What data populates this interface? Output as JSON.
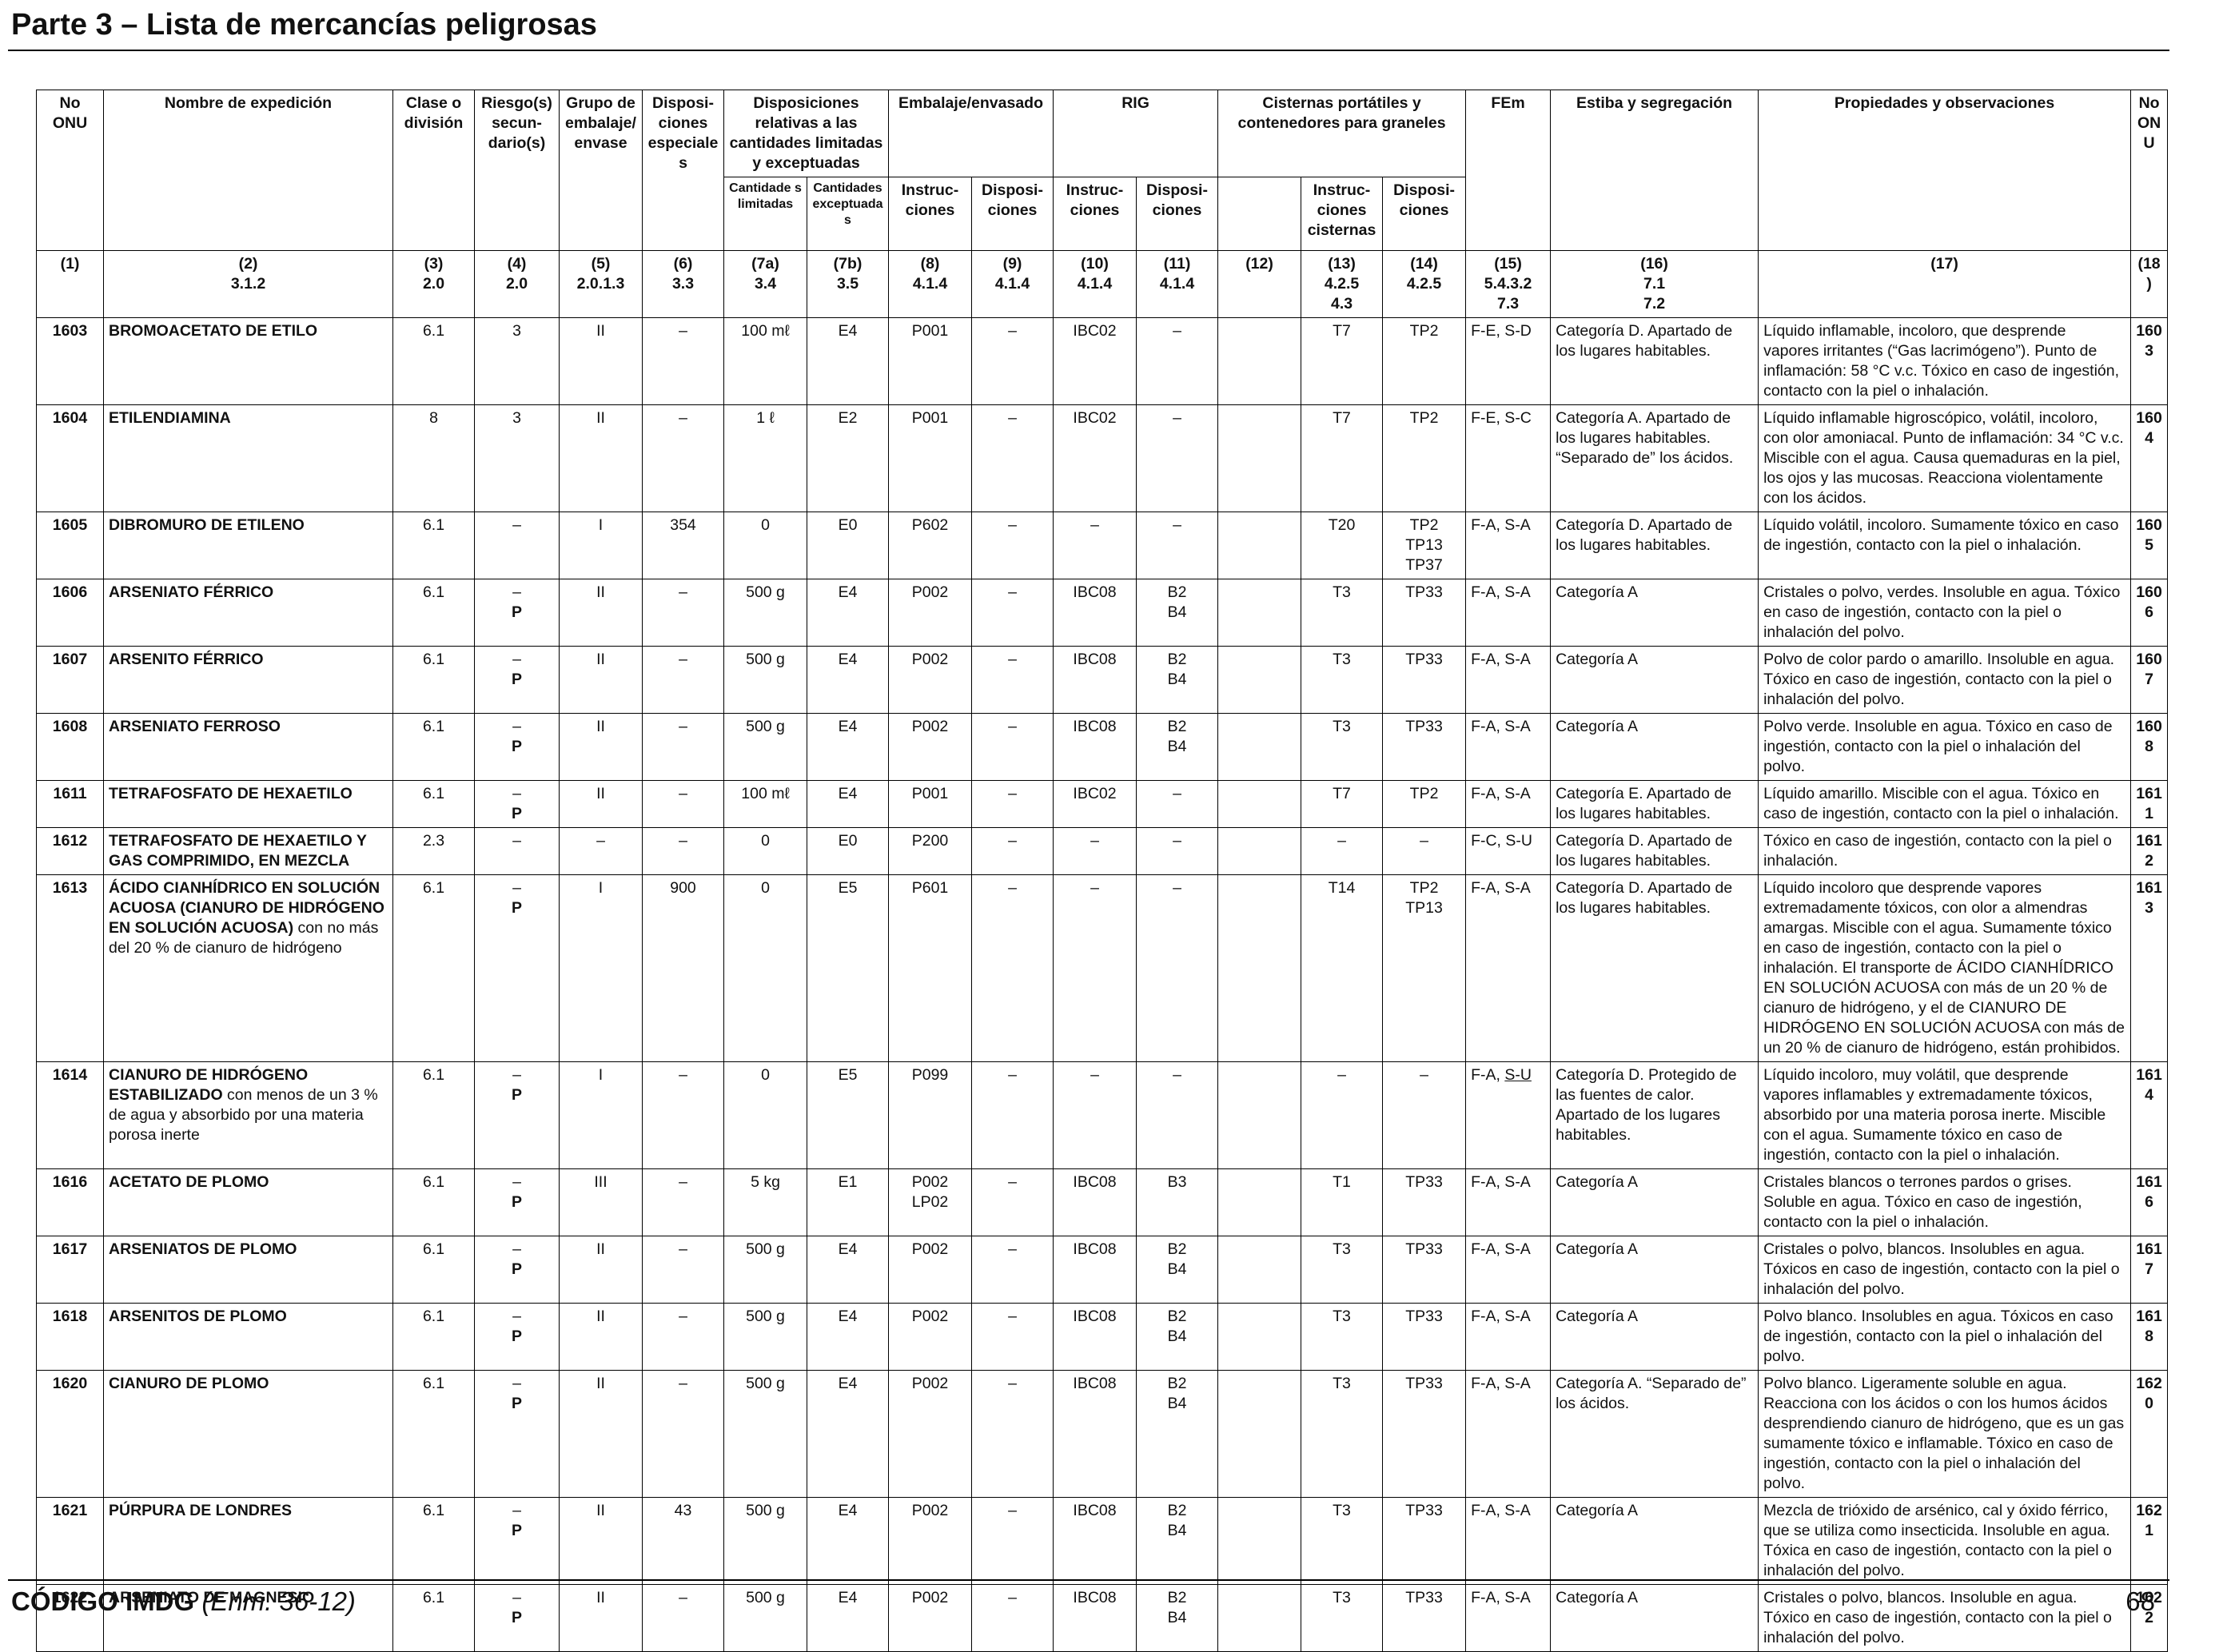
{
  "page": {
    "title": "Parte 3 – Lista de mercancías peligrosas",
    "footer_code": "CÓDIGO IMDG",
    "footer_amendment": "(Enm. 36-12)",
    "page_number": "68"
  },
  "headers": {
    "h1": "No ONU",
    "h2": "Nombre de expedición",
    "h3": "Clase o división",
    "h4": "Riesgo(s) secun- dario(s)",
    "h5": "Grupo de embalaje/ envase",
    "h6": "Disposi- ciones especiales",
    "h7": "Disposiciones relativas a las cantidades limitadas y exceptuadas",
    "h7a": "Cantidade s limitadas",
    "h7b": "Cantidades exceptuadas",
    "h8_9": "Embalaje/envasado",
    "h8": "Instruc- ciones",
    "h9": "Disposi- ciones",
    "h10_11": "RIG",
    "h10": "Instruc- ciones",
    "h11": "Disposi- ciones",
    "h12_14": "Cisternas portátiles y contenedores para graneles",
    "h13": "Instruc- ciones cisternas",
    "h14": "Disposi- ciones",
    "h15": "FEm",
    "h16": "Estiba y segregación",
    "h17": "Propiedades y observaciones",
    "h18": "No ONU"
  },
  "colnums": {
    "n1": "(1)",
    "n2": "(2)",
    "r2": "3.1.2",
    "n3": "(3)",
    "r3": "2.0",
    "n4": "(4)",
    "r4": "2.0",
    "n5": "(5)",
    "r5": "2.0.1.3",
    "n6": "(6)",
    "r6": "3.3",
    "n7a": "(7a)",
    "r7a": "3.4",
    "n7b": "(7b)",
    "r7b": "3.5",
    "n8": "(8)",
    "r8": "4.1.4",
    "n9": "(9)",
    "r9": "4.1.4",
    "n10": "(10)",
    "r10": "4.1.4",
    "n11": "(11)",
    "r11": "4.1.4",
    "n12": "(12)",
    "n13": "(13)",
    "r13a": "4.2.5",
    "r13b": "4.3",
    "n14": "(14)",
    "r14": "4.2.5",
    "n15": "(15)",
    "r15a": "5.4.3.2",
    "r15b": "7.3",
    "n16": "(16)",
    "r16a": "7.1",
    "r16b": "7.2",
    "n17": "(17)",
    "n18": "(18)"
  },
  "rows": [
    {
      "un": "1603",
      "name": "BROMOACETATO DE ETILO",
      "name_rest": "",
      "cls": "6.1",
      "sub": "3",
      "sub_p": "",
      "pg": "II",
      "sp": "–",
      "lq": "100 mℓ",
      "eq": "E4",
      "pi": [
        "P001"
      ],
      "pp": "–",
      "ibc": "IBC02",
      "ibcp": [
        "–"
      ],
      "c12": "",
      "tank": "T7",
      "tp": [
        "TP2"
      ],
      "ems": "F-E, S-D",
      "ems_a": "",
      "ems_b": "",
      "stow": "Categoría D. Apartado de los lugares habitables.",
      "props": "Líquido inflamable, incoloro, que desprende vapores irritantes (“Gas lacrimógeno”). Punto de inflamación: 58 °C v.c. Tóxico en caso de ingestión, contacto con la piel o inhalación."
    },
    {
      "un": "1604",
      "name": "ETILENDIAMINA",
      "name_rest": "",
      "cls": "8",
      "sub": "3",
      "sub_p": "",
      "pg": "II",
      "sp": "–",
      "lq": "1 ℓ",
      "eq": "E2",
      "pi": [
        "P001"
      ],
      "pp": "–",
      "ibc": "IBC02",
      "ibcp": [
        "–"
      ],
      "c12": "",
      "tank": "T7",
      "tp": [
        "TP2"
      ],
      "ems": "F-E, S-C",
      "ems_a": "",
      "ems_b": "",
      "stow": "Categoría A. Apartado de los lugares habitables. “Separado de” los ácidos.",
      "props": "Líquido inflamable higroscópico, volátil, incoloro, con olor amoniacal. Punto de inflamación: 34 °C v.c. Miscible con el agua. Causa quemaduras en la piel, los ojos y las mucosas. Reacciona violentamente con los ácidos."
    },
    {
      "un": "1605",
      "name": "DIBROMURO DE ETILENO",
      "name_rest": "",
      "cls": "6.1",
      "sub": "–",
      "sub_p": "",
      "pg": "I",
      "sp": "354",
      "lq": "0",
      "eq": "E0",
      "pi": [
        "P602"
      ],
      "pp": "–",
      "ibc": "–",
      "ibcp": [
        "–"
      ],
      "c12": "",
      "tank": "T20",
      "tp": [
        "TP2",
        "TP13",
        "TP37"
      ],
      "ems": "F-A, S-A",
      "ems_a": "",
      "ems_b": "",
      "stow": "Categoría D. Apartado de los lugares habitables.",
      "props": "Líquido volátil, incoloro. Sumamente tóxico en caso de ingestión, contacto con la piel o inhalación."
    },
    {
      "un": "1606",
      "name": "ARSENIATO FÉRRICO",
      "name_rest": "",
      "cls": "6.1",
      "sub": "–",
      "sub_p": "P",
      "pg": "II",
      "sp": "–",
      "lq": "500 g",
      "eq": "E4",
      "pi": [
        "P002"
      ],
      "pp": "–",
      "ibc": "IBC08",
      "ibcp": [
        "B2",
        "B4"
      ],
      "c12": "",
      "tank": "T3",
      "tp": [
        "TP33"
      ],
      "ems": "F-A, S-A",
      "ems_a": "",
      "ems_b": "",
      "stow": "Categoría A",
      "props": "Cristales o polvo, verdes. Insoluble en agua. Tóxico en caso de ingestión, contacto con la piel o inhalación del polvo."
    },
    {
      "un": "1607",
      "name": "ARSENITO FÉRRICO",
      "name_rest": "",
      "cls": "6.1",
      "sub": "–",
      "sub_p": "P",
      "pg": "II",
      "sp": "–",
      "lq": "500 g",
      "eq": "E4",
      "pi": [
        "P002"
      ],
      "pp": "–",
      "ibc": "IBC08",
      "ibcp": [
        "B2",
        "B4"
      ],
      "c12": "",
      "tank": "T3",
      "tp": [
        "TP33"
      ],
      "ems": "F-A, S-A",
      "ems_a": "",
      "ems_b": "",
      "stow": "Categoría A",
      "props": "Polvo de color pardo o amarillo. Insoluble en agua. Tóxico en caso de ingestión, contacto con la piel o inhalación del polvo."
    },
    {
      "un": "1608",
      "name": "ARSENIATO FERROSO",
      "name_rest": "",
      "cls": "6.1",
      "sub": "–",
      "sub_p": "P",
      "pg": "II",
      "sp": "–",
      "lq": "500 g",
      "eq": "E4",
      "pi": [
        "P002"
      ],
      "pp": "–",
      "ibc": "IBC08",
      "ibcp": [
        "B2",
        "B4"
      ],
      "c12": "",
      "tank": "T3",
      "tp": [
        "TP33"
      ],
      "ems": "F-A, S-A",
      "ems_a": "",
      "ems_b": "",
      "stow": "Categoría A",
      "props": "Polvo verde. Insoluble en agua. Tóxico en caso de ingestión, contacto con la piel o inhalación del polvo."
    },
    {
      "un": "1611",
      "name": "TETRAFOSFATO DE HEXAETILO",
      "name_rest": "",
      "cls": "6.1",
      "sub": "–",
      "sub_p": "P",
      "pg": "II",
      "sp": "–",
      "lq": "100 mℓ",
      "eq": "E4",
      "pi": [
        "P001"
      ],
      "pp": "–",
      "ibc": "IBC02",
      "ibcp": [
        "–"
      ],
      "c12": "",
      "tank": "T7",
      "tp": [
        "TP2"
      ],
      "ems": "F-A, S-A",
      "ems_a": "",
      "ems_b": "",
      "stow": "Categoría E. Apartado de los lugares habitables.",
      "props": "Líquido amarillo. Miscible con el agua. Tóxico en caso de ingestión, contacto con la piel o inhalación."
    },
    {
      "un": "1612",
      "name": "TETRAFOSFATO DE HEXAETILO Y GAS COMPRIMIDO, EN MEZCLA",
      "name_rest": "",
      "cls": "2.3",
      "sub": "–",
      "sub_p": "",
      "pg": "–",
      "sp": "–",
      "lq": "0",
      "eq": "E0",
      "pi": [
        "P200"
      ],
      "pp": "–",
      "ibc": "–",
      "ibcp": [
        "–"
      ],
      "c12": "",
      "tank": "–",
      "tp": [
        "–"
      ],
      "ems": "F-C, S-U",
      "ems_a": "",
      "ems_b": "",
      "stow": "Categoría D. Apartado de los lugares habitables.",
      "props": "Tóxico en caso de ingestión, contacto con la piel o inhalación."
    },
    {
      "un": "1613",
      "name": "ÁCIDO CIANHÍDRICO EN SOLUCIÓN ACUOSA (CIANURO DE HIDRÓGENO EN SOLUCIÓN ACUOSA)",
      "name_rest": "con no más del 20 % de cianuro de hidrógeno",
      "cls": "6.1",
      "sub": "–",
      "sub_p": "P",
      "pg": "I",
      "sp": "900",
      "lq": "0",
      "eq": "E5",
      "pi": [
        "P601"
      ],
      "pp": "–",
      "ibc": "–",
      "ibcp": [
        "–"
      ],
      "c12": "",
      "tank": "T14",
      "tp": [
        "TP2",
        "TP13"
      ],
      "ems": "F-A, S-A",
      "ems_a": "",
      "ems_b": "",
      "stow": "Categoría D. Apartado de los lugares habitables.",
      "props": "Líquido incoloro que desprende vapores extremadamente tóxicos, con olor a almendras amargas. Miscible con el agua. Sumamente tóxico en caso de ingestión, contacto con la piel o inhalación. El transporte de ÁCIDO CIANHÍDRICO EN SOLUCIÓN ACUOSA con más de un 20 % de cianuro de hidrógeno, y el de CIANURO DE HIDRÓGENO EN SOLUCIÓN ACUOSA con más de un 20 % de cianuro de hidrógeno, están prohibidos."
    },
    {
      "un": "1614",
      "name": "CIANURO DE HIDRÓGENO ESTABILIZADO",
      "name_rest": "con menos de un 3 % de agua y absorbido por una materia porosa inerte",
      "cls": "6.1",
      "sub": "–",
      "sub_p": "P",
      "pg": "I",
      "sp": "–",
      "lq": "0",
      "eq": "E5",
      "pi": [
        "P099"
      ],
      "pp": "–",
      "ibc": "–",
      "ibcp": [
        "–"
      ],
      "c12": "",
      "tank": "–",
      "tp": [
        "–"
      ],
      "ems": "",
      "ems_a": "F-A, ",
      "ems_b": "S-U",
      "stow": "Categoría D. Protegido de las fuentes de calor. Apartado de los lugares habitables.",
      "props": "Líquido incoloro, muy volátil, que desprende vapores inflamables y extremadamente tóxicos, absorbido por una materia porosa inerte. Miscible con el agua. Sumamente tóxico en caso de ingestión, contacto con la piel o inhalación."
    },
    {
      "un": "1616",
      "name": "ACETATO DE PLOMO",
      "name_rest": "",
      "cls": "6.1",
      "sub": "–",
      "sub_p": "P",
      "pg": "III",
      "sp": "–",
      "lq": "5 kg",
      "eq": "E1",
      "pi": [
        "P002",
        "LP02"
      ],
      "pp": "–",
      "ibc": "IBC08",
      "ibcp": [
        "B3"
      ],
      "c12": "",
      "tank": "T1",
      "tp": [
        "TP33"
      ],
      "ems": "F-A, S-A",
      "ems_a": "",
      "ems_b": "",
      "stow": "Categoría A",
      "props": "Cristales blancos o terrones pardos o grises. Soluble en agua. Tóxico en caso de ingestión, contacto con la piel o inhalación."
    },
    {
      "un": "1617",
      "name": "ARSENIATOS DE PLOMO",
      "name_rest": "",
      "cls": "6.1",
      "sub": "–",
      "sub_p": "P",
      "pg": "II",
      "sp": "–",
      "lq": "500 g",
      "eq": "E4",
      "pi": [
        "P002"
      ],
      "pp": "–",
      "ibc": "IBC08",
      "ibcp": [
        "B2",
        "B4"
      ],
      "c12": "",
      "tank": "T3",
      "tp": [
        "TP33"
      ],
      "ems": "F-A, S-A",
      "ems_a": "",
      "ems_b": "",
      "stow": "Categoría A",
      "props": "Cristales o polvo, blancos. Insolubles en agua. Tóxicos en caso de ingestión, contacto con la piel o inhalación del polvo."
    },
    {
      "un": "1618",
      "name": "ARSENITOS DE PLOMO",
      "name_rest": "",
      "cls": "6.1",
      "sub": "–",
      "sub_p": "P",
      "pg": "II",
      "sp": "–",
      "lq": "500 g",
      "eq": "E4",
      "pi": [
        "P002"
      ],
      "pp": "–",
      "ibc": "IBC08",
      "ibcp": [
        "B2",
        "B4"
      ],
      "c12": "",
      "tank": "T3",
      "tp": [
        "TP33"
      ],
      "ems": "F-A, S-A",
      "ems_a": "",
      "ems_b": "",
      "stow": "Categoría A",
      "props": "Polvo blanco. Insolubles en agua. Tóxicos en caso de ingestión, contacto con la piel o inhalación del polvo."
    },
    {
      "un": "1620",
      "name": "CIANURO DE PLOMO",
      "name_rest": "",
      "cls": "6.1",
      "sub": "–",
      "sub_p": "P",
      "pg": "II",
      "sp": "–",
      "lq": "500 g",
      "eq": "E4",
      "pi": [
        "P002"
      ],
      "pp": "–",
      "ibc": "IBC08",
      "ibcp": [
        "B2",
        "B4"
      ],
      "c12": "",
      "tank": "T3",
      "tp": [
        "TP33"
      ],
      "ems": "F-A, S-A",
      "ems_a": "",
      "ems_b": "",
      "stow": "Categoría A. “Separado de” los ácidos.",
      "props": "Polvo blanco. Ligeramente soluble en agua. Reacciona con los ácidos o con los humos ácidos desprendiendo cianuro de hidrógeno, que es un gas sumamente tóxico e inflamable. Tóxico en caso de ingestión, contacto con la piel o inhalación del polvo."
    },
    {
      "un": "1621",
      "name": "PÚRPURA DE LONDRES",
      "name_rest": "",
      "cls": "6.1",
      "sub": "–",
      "sub_p": "P",
      "pg": "II",
      "sp": "43",
      "lq": "500 g",
      "eq": "E4",
      "pi": [
        "P002"
      ],
      "pp": "–",
      "ibc": "IBC08",
      "ibcp": [
        "B2",
        "B4"
      ],
      "c12": "",
      "tank": "T3",
      "tp": [
        "TP33"
      ],
      "ems": "F-A, S-A",
      "ems_a": "",
      "ems_b": "",
      "stow": "Categoría A",
      "props": "Mezcla de trióxido de arsénico, cal y óxido férrico, que se utiliza como insecticida. Insoluble en agua. Tóxica en caso de ingestión, contacto con la piel o inhalación del polvo."
    },
    {
      "un": "1622",
      "name": "ARSENIATO DE MAGNESIO",
      "name_rest": "",
      "cls": "6.1",
      "sub": "–",
      "sub_p": "P",
      "pg": "II",
      "sp": "–",
      "lq": "500 g",
      "eq": "E4",
      "pi": [
        "P002"
      ],
      "pp": "–",
      "ibc": "IBC08",
      "ibcp": [
        "B2",
        "B4"
      ],
      "c12": "",
      "tank": "T3",
      "tp": [
        "TP33"
      ],
      "ems": "F-A, S-A",
      "ems_a": "",
      "ems_b": "",
      "stow": "Categoría A",
      "props": "Cristales o polvo, blancos. Insoluble en agua. Tóxico en caso de ingestión, contacto con la piel o inhalación del polvo."
    }
  ]
}
